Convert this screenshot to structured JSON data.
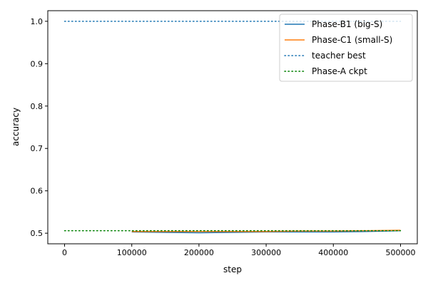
{
  "chart_data": {
    "type": "line",
    "xlabel": "step",
    "ylabel": "accuracy",
    "xlim": [
      -25000,
      525000
    ],
    "ylim": [
      0.475,
      1.025
    ],
    "x_ticks": [
      0,
      100000,
      200000,
      300000,
      400000,
      500000
    ],
    "y_ticks": [
      0.5,
      0.6,
      0.7,
      0.8,
      0.9,
      1.0
    ],
    "x_tick_labels": [
      "0",
      "100000",
      "200000",
      "300000",
      "400000",
      "500000"
    ],
    "y_tick_labels": [
      "0.5",
      "0.6",
      "0.7",
      "0.8",
      "0.9",
      "1.0"
    ],
    "grid": false,
    "legend_position": "top-right",
    "series": [
      {
        "name": "Phase-B1 (big-S)",
        "style": "solid",
        "color": "#1f77b4",
        "x": [
          100000,
          150000,
          200000,
          250000,
          300000,
          350000,
          400000,
          450000,
          500000
        ],
        "y": [
          0.503,
          0.502,
          0.501,
          0.502,
          0.503,
          0.503,
          0.503,
          0.504,
          0.506
        ]
      },
      {
        "name": "Phase-C1 (small-S)",
        "style": "solid",
        "color": "#ff7f0e",
        "x": [
          100000,
          150000,
          200000,
          250000,
          300000,
          350000,
          400000,
          450000,
          500000
        ],
        "y": [
          0.504,
          0.504,
          0.504,
          0.504,
          0.504,
          0.505,
          0.505,
          0.506,
          0.507
        ]
      },
      {
        "name": "teacher best",
        "style": "dotted",
        "color": "#1f77b4",
        "x": [
          0,
          500000
        ],
        "y": [
          1.0,
          1.0
        ]
      },
      {
        "name": "Phase-A ckpt",
        "style": "dotted",
        "color": "#008000",
        "x": [
          0,
          500000
        ],
        "y": [
          0.506,
          0.506
        ]
      }
    ]
  }
}
